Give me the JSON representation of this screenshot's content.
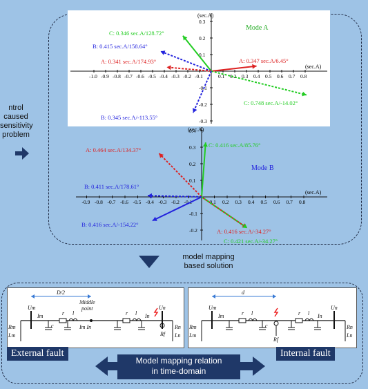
{
  "side_note": {
    "line1": "ntrol caused",
    "line2": "sensitivity",
    "line3": "problem"
  },
  "mode_a": {
    "title": "Mode A",
    "axis_y_label": "(sec.A)",
    "axis_x_label": "(sec.A)",
    "y_ticks": [
      "0.3",
      "0.2",
      "0.1",
      "-0.1",
      "-0.2",
      "-0.3"
    ],
    "x_ticks": [
      "-1.0",
      "-0.9",
      "-0.8",
      "-0.7",
      "-0.6",
      "-0.5",
      "-0.4",
      "-0.3",
      "-0.2",
      "-0.1",
      "0.1",
      "0.2",
      "0.3",
      "0.4",
      "0.5",
      "0.6",
      "0.7",
      "0.8"
    ],
    "phasors": [
      {
        "label": "C: 0.346 sec.A/128.72°",
        "color": "#22cc22"
      },
      {
        "label": "B: 0.415 sec.A/158.64°",
        "color": "#2222dd"
      },
      {
        "label": "A: 0.341 sec.A/174.93°",
        "color": "#dd2222"
      },
      {
        "label": "A: 0.347 sec.A/6.45°",
        "color": "#dd2222"
      },
      {
        "label": "C: 0.748 sec.A/-14.02°",
        "color": "#22cc22"
      },
      {
        "label": "B: 0.345 sec.A/-113.55°",
        "color": "#2222dd"
      }
    ]
  },
  "mode_b": {
    "title": "Mode B",
    "axis_y_label": "(sec.A)",
    "axis_x_label": "(sec.A)",
    "y_ticks": [
      "0.4",
      "0.3",
      "0.2",
      "0.1",
      "-0.1",
      "-0.2",
      "-0.3"
    ],
    "x_ticks": [
      "-0.9",
      "-0.8",
      "-0.7",
      "-0.6",
      "-0.5",
      "-0.4",
      "-0.3",
      "-0.2",
      "-0.1",
      "0.1",
      "0.2",
      "0.3",
      "0.4",
      "0.5",
      "0.6",
      "0.7",
      "0.8"
    ],
    "phasors": [
      {
        "label": "C: 0.416 sec.A/85.76°",
        "color": "#22cc22"
      },
      {
        "label": "A: 0.464 sec.A/134.37°",
        "color": "#dd2222"
      },
      {
        "label": "B: 0.411 sec.A/178.61°",
        "color": "#2222dd"
      },
      {
        "label": "B: 0.416 sec.A/-154.22°",
        "color": "#2222dd"
      },
      {
        "label": "A: 0.416 sec.A/-34.27°",
        "color": "#dd2222"
      },
      {
        "label": "C: 0.421 sec.A/-34.27°",
        "color": "#22cc22"
      }
    ]
  },
  "mid_note": {
    "line1": "model mapping",
    "line2": "based solution"
  },
  "external": {
    "label": "External fault",
    "d_label": "D/2",
    "um": "Um",
    "un": "Un",
    "im": "Im",
    "in": "In",
    "r": "r",
    "l": "l",
    "c": "c",
    "middle": "Middle",
    "point": "point",
    "im_in": "Im In",
    "rm": "Rm",
    "lm": "Lm",
    "rf": "Rf",
    "rn": "Rn",
    "ln": "Ln"
  },
  "internal": {
    "label": "Internal fault",
    "d_label": "d",
    "um": "Um",
    "un": "Un",
    "im": "Im",
    "in": "In",
    "r": "r",
    "l": "l",
    "c": "c",
    "rm": "Rm",
    "lm": "Lm",
    "rf": "Rf",
    "rn": "Rn",
    "ln": "Ln"
  },
  "relation": {
    "line1": "Model mapping relation",
    "line2": "in time-domain"
  }
}
